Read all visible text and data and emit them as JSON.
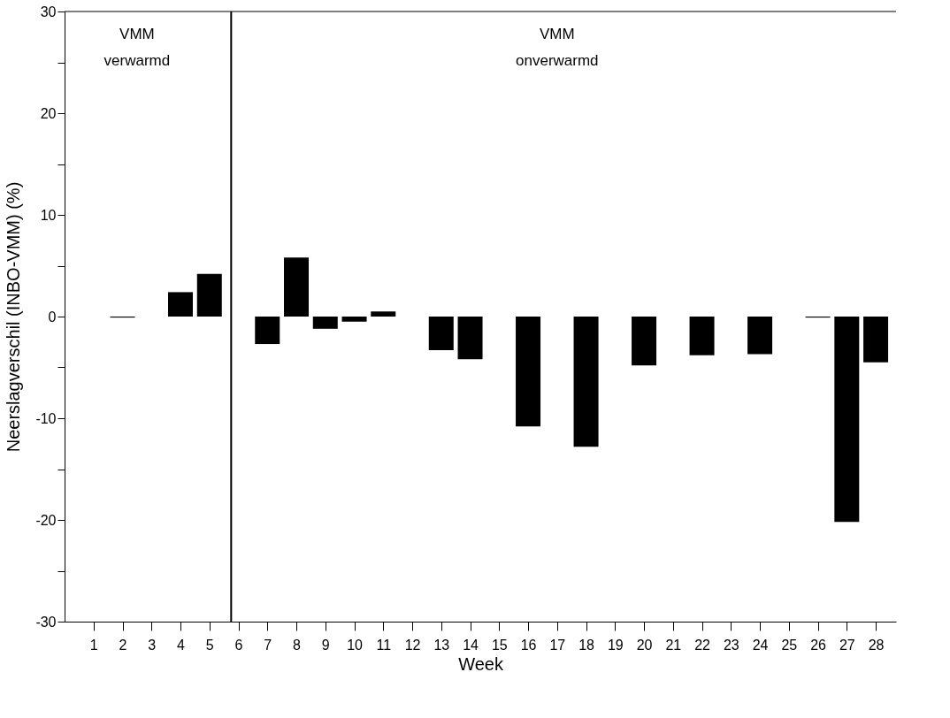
{
  "chart_data": {
    "type": "bar",
    "xlabel": "Week",
    "ylabel": "Neerslagverschil (INBO-VMM) (%)",
    "x": [
      2,
      4,
      5,
      7,
      8,
      9,
      10,
      11,
      13,
      14,
      16,
      18,
      20,
      22,
      24,
      26,
      27,
      28
    ],
    "series": [
      {
        "color": "#000000",
        "values": [
          -0.1,
          2.4,
          4.2,
          -2.7,
          5.8,
          -1.2,
          -0.5,
          0.5,
          -3.3,
          -4.2,
          -10.8,
          -12.8,
          -4.8,
          -3.8,
          -3.7,
          -0.1,
          -20.2,
          -4.5
        ]
      }
    ],
    "xlim": [
      0,
      28.7
    ],
    "xticks": [
      1,
      2,
      3,
      4,
      5,
      6,
      7,
      8,
      9,
      10,
      11,
      12,
      13,
      14,
      15,
      16,
      17,
      18,
      19,
      20,
      21,
      22,
      23,
      24,
      25,
      26,
      27,
      28
    ],
    "ylim": [
      -30,
      30
    ],
    "yticks": [
      -30,
      {
        "value": -25,
        "label": null
      },
      -20,
      {
        "value": -15,
        "label": null
      },
      -10,
      {
        "value": -5,
        "label": null
      },
      0,
      {
        "value": 5,
        "label": null
      },
      10,
      {
        "value": 15,
        "label": null
      },
      20,
      {
        "value": 25,
        "label": null
      },
      30
    ],
    "ref_lines": [
      {
        "axis": "x",
        "value": 5.75,
        "color": "#000000",
        "line_style": "solid"
      }
    ],
    "annotations": [
      "VMM\nverwarmd",
      "VMM\nonverwarmd"
    ],
    "grid": false
  }
}
